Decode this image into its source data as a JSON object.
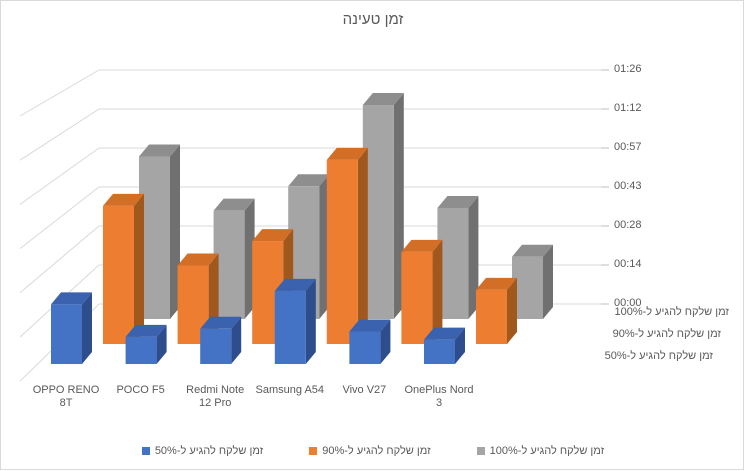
{
  "window": {
    "background": "#FFFFFF"
  },
  "chart_data": {
    "type": "bar",
    "variant": "3d-clustered-column",
    "title": "זמן טעינה",
    "categories": [
      "OPPO RENO 8T",
      "POCO F5",
      "Redmi Note 12 Pro",
      "Samsung A54",
      "Vivo V27",
      "OnePlus Nord 3"
    ],
    "category_label_lines": [
      [
        "OPPO RENO",
        "8T"
      ],
      [
        "POCO F5"
      ],
      [
        "Redmi Note",
        "12 Pro"
      ],
      [
        "Samsung A54"
      ],
      [
        "Vivo V27"
      ],
      [
        "OnePlus Nord",
        "3"
      ]
    ],
    "series": [
      {
        "name": "זמן שלקח להגיע ל-50%",
        "key": "50pct",
        "color": "#4472C4",
        "color_top": "#3A62AE",
        "color_side": "#2D4D8C",
        "values_minutes": [
          22,
          10,
          13,
          27,
          12,
          9
        ],
        "values_display": [
          "00:22",
          "00:10",
          "00:13",
          "00:27",
          "00:12",
          "00:09"
        ]
      },
      {
        "name": "זמן שלקח להגיע ל-90%",
        "key": "90pct",
        "color": "#ED7D31",
        "color_top": "#D26E26",
        "color_side": "#A1581C",
        "values_minutes": [
          51,
          29,
          38,
          68,
          34,
          20
        ],
        "values_display": [
          "00:51",
          "00:29",
          "00:38",
          "01:08",
          "00:34",
          "00:20"
        ]
      },
      {
        "name": "זמן שלקח להגיע ל-100%",
        "key": "100pct",
        "color": "#A5A5A5",
        "color_top": "#8E8E8E",
        "color_side": "#707070",
        "values_minutes": [
          60,
          40,
          49,
          79,
          41,
          23
        ],
        "values_display": [
          "01:00",
          "00:40",
          "00:49",
          "01:19",
          "00:41",
          "00:23"
        ]
      }
    ],
    "value_axis": {
      "ticks_bottom_to_top": [
        "00:00",
        "00:14",
        "00:28",
        "00:43",
        "00:57",
        "01:12",
        "01:26"
      ],
      "tick_minutes": [
        0,
        14.4,
        28.8,
        43.2,
        57.6,
        72,
        86.4
      ],
      "max_minutes": 86.4
    },
    "depth_axis_labels_top_to_bottom": [
      "זמן שלקח להגיע ל-100%",
      "זמן שלקח להגיע ל-90%",
      "זמן שלקח להגיע ל-50%"
    ],
    "legend": {
      "position": "bottom",
      "items": [
        "זמן שלקח להגיע ל-50%",
        "זמן שלקח להגיע ל-90%",
        "זמן שלקח להגיע ל-100%"
      ]
    },
    "grid": true,
    "colors": {
      "gridline": "#D9D9D9",
      "text": "#595959"
    }
  }
}
